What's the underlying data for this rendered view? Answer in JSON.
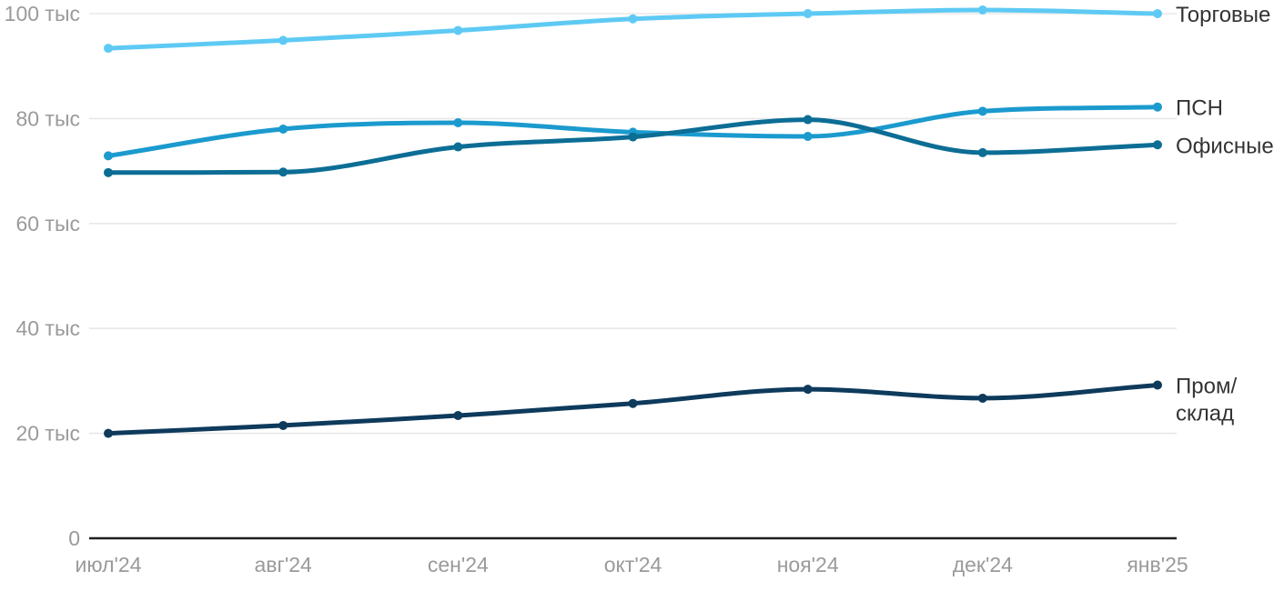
{
  "page": {
    "background": "#ffffff"
  },
  "chart_data": {
    "type": "line",
    "title": "",
    "unit": "тыс",
    "x_categories": [
      "июл'24",
      "авг'24",
      "сен'24",
      "окт'24",
      "ноя'24",
      "дек'24",
      "янв'25"
    ],
    "y_axis": {
      "min": 0,
      "max": 100,
      "ticks": [
        {
          "value": 0,
          "label": "0"
        },
        {
          "value": 20,
          "label": "20 тыс"
        },
        {
          "value": 40,
          "label": "40 тыс"
        },
        {
          "value": 60,
          "label": "60 тыс"
        },
        {
          "value": 80,
          "label": "80 тыс"
        },
        {
          "value": 100,
          "label": "100 тыс"
        }
      ]
    },
    "grid": true,
    "legend_position": "right-of-line-end",
    "series": [
      {
        "name": "Торговые",
        "label_lines": [
          "Торговые"
        ],
        "color": "#5ecaf4",
        "values": [
          93.4,
          94.9,
          96.8,
          99.0,
          100.0,
          100.7,
          100.0
        ]
      },
      {
        "name": "ПСН",
        "label_lines": [
          "ПСН"
        ],
        "color": "#1b9ace",
        "values": [
          72.9,
          78.0,
          79.2,
          77.4,
          76.6,
          81.4,
          82.2
        ]
      },
      {
        "name": "Офисные",
        "label_lines": [
          "Офисные"
        ],
        "color": "#0c6d95",
        "values": [
          69.7,
          69.8,
          74.6,
          76.5,
          79.8,
          73.5,
          75.0
        ]
      },
      {
        "name": "Пром/склад",
        "label_lines": [
          "Пром/",
          "склад"
        ],
        "color": "#0e3a5c",
        "values": [
          20.0,
          21.5,
          23.4,
          25.7,
          28.4,
          26.7,
          29.2
        ]
      }
    ],
    "colors": {
      "gridline": "#e8e8e8",
      "axis_line": "#1f1f1f",
      "tick_label": "#9a9a9a",
      "series_label": "#333333"
    }
  }
}
